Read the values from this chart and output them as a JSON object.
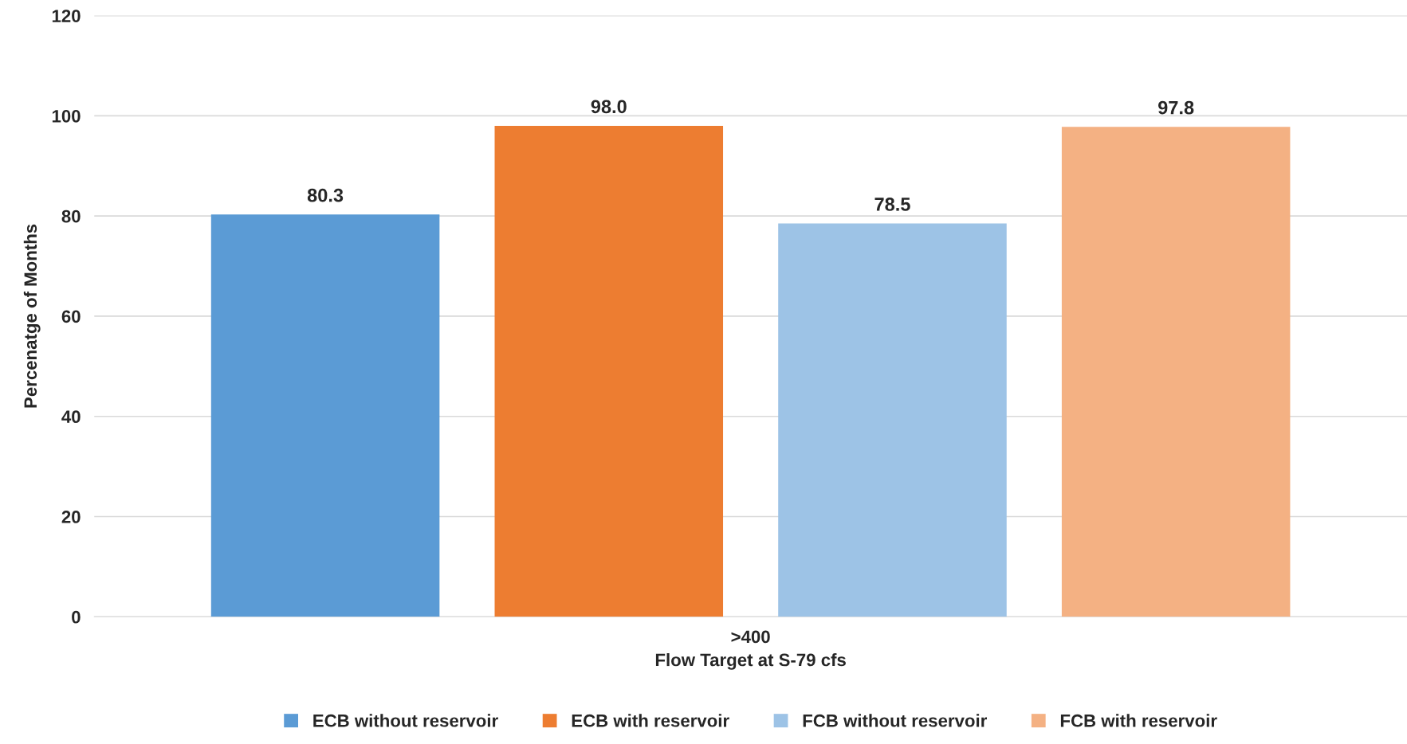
{
  "chart_data": {
    "type": "bar",
    "categories": [
      ">400"
    ],
    "xlabel": "Flow Target at S-79 cfs",
    "ylabel": "Percenatge of Months",
    "ylim": [
      0,
      120
    ],
    "yticks": [
      0,
      20,
      40,
      60,
      80,
      100,
      120
    ],
    "grid": "y",
    "legend": "bottom",
    "series": [
      {
        "name": "ECB without reservoir",
        "color": "#5b9bd5",
        "values": [
          80.3
        ],
        "value_labels": [
          "80.3"
        ]
      },
      {
        "name": "ECB with reservoir",
        "color": "#ed7d31",
        "values": [
          98.0
        ],
        "value_labels": [
          "98.0"
        ]
      },
      {
        "name": "FCB without reservoir",
        "color": "#9dc3e6",
        "values": [
          78.5
        ],
        "value_labels": [
          "78.5"
        ]
      },
      {
        "name": "FCB with reservoir",
        "color": "#f4b183",
        "values": [
          97.8
        ],
        "value_labels": [
          "97.8"
        ]
      }
    ]
  }
}
